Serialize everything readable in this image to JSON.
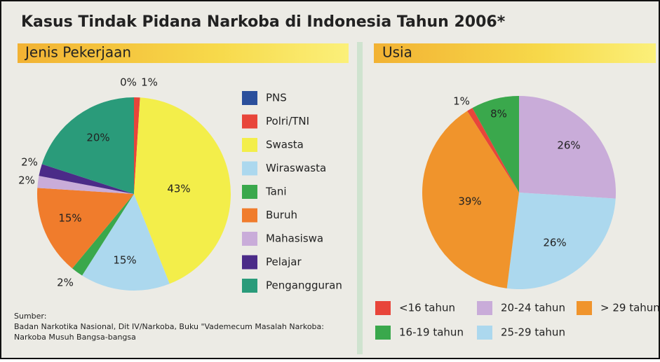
{
  "title": "Kasus Tindak Pidana Narkoba di Indonesia Tahun 2006*",
  "chart_data": [
    {
      "type": "pie",
      "title": "Jenis Pekerjaan",
      "categories": [
        "PNS",
        "Polri/TNI",
        "Swasta",
        "Wiraswasta",
        "Tani",
        "Buruh",
        "Mahasiswa",
        "Pelajar",
        "Pengangguran"
      ],
      "values": [
        0,
        1,
        43,
        15,
        2,
        15,
        2,
        2,
        20
      ],
      "value_labels": [
        "0%",
        "1%",
        "43%",
        "15%",
        "2%",
        "15%",
        "2%",
        "2%",
        "20%"
      ],
      "colors": [
        "#2b4f9c",
        "#e8453a",
        "#f3ee4a",
        "#acd8ee",
        "#3aa84c",
        "#f07c2c",
        "#c9acd9",
        "#4b2b88",
        "#2a9b7a"
      ]
    },
    {
      "type": "pie",
      "title": "Usia",
      "categories": [
        "<16 tahun",
        "16-19 tahun",
        "20-24 tahun",
        "25-29 tahun",
        "> 29 tahun"
      ],
      "values": [
        1,
        8,
        26,
        26,
        39
      ],
      "value_labels": [
        "1%",
        "8%",
        "26%",
        "26%",
        "39%"
      ],
      "colors": [
        "#e8453a",
        "#3aa84c",
        "#c9acd9",
        "#acd8ee",
        "#f0942c"
      ]
    }
  ],
  "source": [
    "Sumber:",
    "Badan Narkotika Nasional, Dit IV/Narkoba, Buku \"Vademecum Masalah Narkoba:",
    "Narkoba Musuh Bangsa-bangsa"
  ]
}
